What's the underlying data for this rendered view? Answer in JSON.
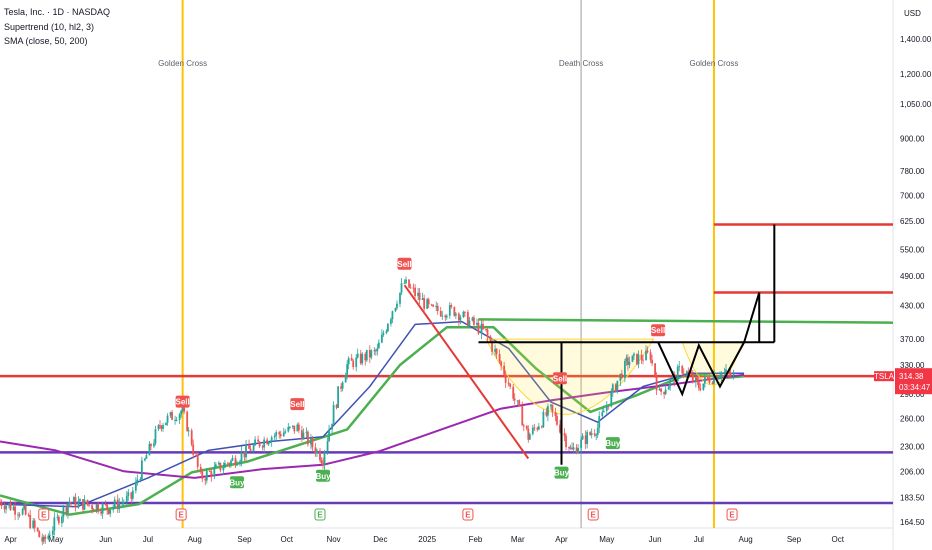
{
  "header": {
    "title": "Tesla, Inc. · 1D · NASDAQ",
    "supertrend": "Supertrend (10, hl2, 3)",
    "sma": "SMA (close, 50, 200)"
  },
  "colors": {
    "up": "#26a69a",
    "down": "#ef5350",
    "sma50": "#4caf50",
    "sma200": "#9c27b0",
    "trend_line": "#e53935",
    "support": "#673ab7",
    "cross_line": "#ffc107",
    "death_line": "#bdbdbd",
    "price_tag": "#f23645"
  },
  "chart_data": {
    "type": "candlestick",
    "symbol": "TSLA",
    "currency": "USD",
    "y_scale": "log",
    "ylim": [
      160,
      1600
    ],
    "y_ticks": [
      "1,400.00",
      "1,200.00",
      "1,050.00",
      "900.00",
      "780.00",
      "700.00",
      "625.00",
      "550.00",
      "490.00",
      "430.00",
      "370.00",
      "330.00",
      "290.00",
      "260.00",
      "230.00",
      "206.00",
      "183.50",
      "164.50"
    ],
    "x_ticks": [
      "Apr",
      "May",
      "Jun",
      "Jul",
      "Aug",
      "Sep",
      "Oct",
      "Nov",
      "Dec",
      "2025",
      "Feb",
      "Mar",
      "Apr",
      "May",
      "Jun",
      "Jul",
      "Aug",
      "Sep",
      "Oct"
    ],
    "x_range": [
      "2024-03-25",
      "2025-10-31"
    ],
    "last_price": {
      "symbol": "TSLA",
      "price": "314.38",
      "countdown": "03:34:47"
    },
    "vertical_markers": [
      {
        "date": "2024-07-24",
        "label": "Golden Cross",
        "kind": "golden"
      },
      {
        "date": "2025-04-14",
        "label": "Death Cross",
        "kind": "death"
      },
      {
        "date": "2025-07-11",
        "label": "Golden Cross",
        "kind": "golden"
      }
    ],
    "signals": [
      {
        "date": "2024-07-24",
        "type": "Sell",
        "price": 266
      },
      {
        "date": "2024-08-29",
        "type": "Buy",
        "price": 206
      },
      {
        "date": "2024-10-08",
        "type": "Sell",
        "price": 263
      },
      {
        "date": "2024-10-25",
        "type": "Buy",
        "price": 212
      },
      {
        "date": "2024-12-18",
        "type": "Sell",
        "price": 490
      },
      {
        "date": "2025-03-31",
        "type": "Sell",
        "price": 295
      },
      {
        "date": "2025-04-01",
        "type": "Buy",
        "price": 215
      },
      {
        "date": "2025-05-05",
        "type": "Buy",
        "price": 245
      },
      {
        "date": "2025-06-04",
        "type": "Sell",
        "price": 365
      }
    ],
    "earnings": [
      {
        "date": "2024-04-23",
        "label": "E"
      },
      {
        "date": "2024-07-23",
        "label": "E"
      },
      {
        "date": "2024-10-23",
        "label": "E"
      },
      {
        "date": "2025-01-29",
        "label": "E"
      },
      {
        "date": "2025-04-22",
        "label": "E"
      },
      {
        "date": "2025-07-23",
        "label": "E"
      }
    ],
    "horizontal_levels": [
      {
        "price": 314,
        "color": "#e53935"
      },
      {
        "price": 224,
        "color": "#673ab7"
      },
      {
        "price": 179,
        "color": "#673ab7"
      }
    ],
    "targets": [
      {
        "start": "2025-07-11",
        "end": "2025-10-31",
        "price": 615
      },
      {
        "start": "2025-07-11",
        "end": "2025-10-31",
        "price": 455
      }
    ],
    "neckline": {
      "start": "2025-02-05",
      "end": "2025-08-20",
      "price": 365
    },
    "channel_sma_line": {
      "start": "2025-02-05",
      "end": "2025-10-31",
      "price_start": 404,
      "price_end": 398
    },
    "series": [
      {
        "key": "sma50",
        "points": [
          [
            "2024-03-25",
            185
          ],
          [
            "2024-05-10",
            170
          ],
          [
            "2024-06-25",
            178
          ],
          [
            "2024-07-30",
            205
          ],
          [
            "2024-09-05",
            215
          ],
          [
            "2024-10-10",
            232
          ],
          [
            "2024-11-10",
            248
          ],
          [
            "2024-12-15",
            330
          ],
          [
            "2025-01-15",
            390
          ],
          [
            "2025-02-15",
            390
          ],
          [
            "2025-03-15",
            325
          ],
          [
            "2025-04-20",
            268
          ],
          [
            "2025-05-20",
            288
          ],
          [
            "2025-06-25",
            318
          ],
          [
            "2025-07-20",
            312
          ],
          [
            "2025-07-31",
            314
          ]
        ]
      },
      {
        "key": "sma200",
        "points": [
          [
            "2024-03-25",
            235
          ],
          [
            "2024-05-01",
            226
          ],
          [
            "2024-06-15",
            206
          ],
          [
            "2024-08-01",
            200
          ],
          [
            "2024-09-15",
            208
          ],
          [
            "2024-10-25",
            212
          ],
          [
            "2024-12-01",
            225
          ],
          [
            "2025-01-15",
            250
          ],
          [
            "2025-02-20",
            272
          ],
          [
            "2025-03-25",
            282
          ],
          [
            "2025-04-30",
            292
          ],
          [
            "2025-06-10",
            302
          ],
          [
            "2025-07-31",
            316
          ]
        ]
      },
      {
        "key": "ema_blue",
        "points": [
          [
            "2024-03-25",
            178
          ],
          [
            "2024-05-15",
            176
          ],
          [
            "2024-07-01",
            200
          ],
          [
            "2024-08-10",
            226
          ],
          [
            "2024-09-20",
            235
          ],
          [
            "2024-10-25",
            240
          ],
          [
            "2024-11-25",
            300
          ],
          [
            "2024-12-25",
            395
          ],
          [
            "2025-01-25",
            400
          ],
          [
            "2025-02-25",
            355
          ],
          [
            "2025-03-25",
            280
          ],
          [
            "2025-04-25",
            256
          ],
          [
            "2025-05-25",
            300
          ],
          [
            "2025-06-25",
            318
          ],
          [
            "2025-07-31",
            318
          ]
        ]
      }
    ],
    "ohlc_anchors": [
      [
        "2024-03-25",
        180
      ],
      [
        "2024-04-10",
        172
      ],
      [
        "2024-04-23",
        150
      ],
      [
        "2024-05-10",
        180
      ],
      [
        "2024-06-05",
        175
      ],
      [
        "2024-06-20",
        183
      ],
      [
        "2024-07-10",
        255
      ],
      [
        "2024-07-24",
        270
      ],
      [
        "2024-08-05",
        200
      ],
      [
        "2024-08-25",
        215
      ],
      [
        "2024-09-20",
        240
      ],
      [
        "2024-10-08",
        250
      ],
      [
        "2024-10-25",
        218
      ],
      [
        "2024-11-10",
        330
      ],
      [
        "2024-11-30",
        350
      ],
      [
        "2024-12-18",
        475
      ],
      [
        "2025-01-05",
        420
      ],
      [
        "2025-01-20",
        420
      ],
      [
        "2025-02-10",
        380
      ],
      [
        "2025-02-28",
        290
      ],
      [
        "2025-03-10",
        240
      ],
      [
        "2025-03-25",
        270
      ],
      [
        "2025-04-08",
        225
      ],
      [
        "2025-04-25",
        250
      ],
      [
        "2025-05-15",
        335
      ],
      [
        "2025-05-30",
        345
      ],
      [
        "2025-06-05",
        290
      ],
      [
        "2025-06-20",
        325
      ],
      [
        "2025-07-01",
        300
      ],
      [
        "2025-07-15",
        320
      ],
      [
        "2025-07-25",
        314
      ]
    ]
  }
}
